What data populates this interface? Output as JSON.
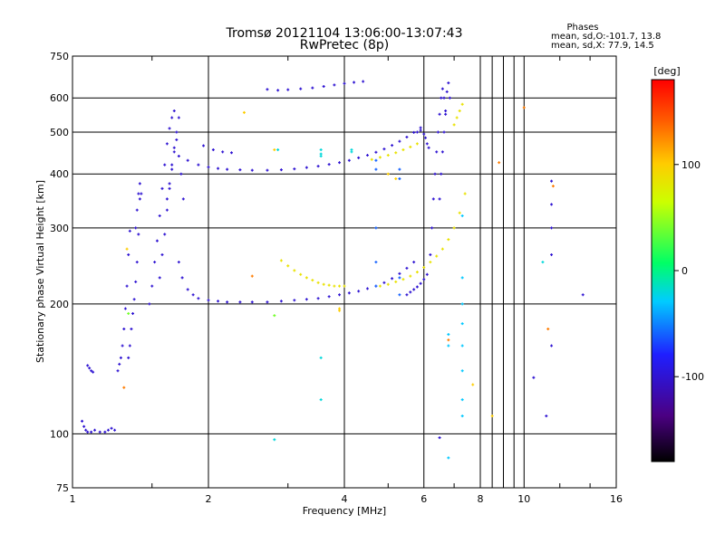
{
  "chart_data": {
    "type": "scatter",
    "title": "Tromsø 20121104 13:06:00-13:07:43",
    "subtitle": "RwPretec (8p)",
    "xlabel": "Frequency [MHz]",
    "ylabel": "Stationary phase Virtual Height [km]",
    "x_scale": "log",
    "y_scale": "log",
    "xlim": [
      1,
      16
    ],
    "ylim": [
      75,
      750
    ],
    "x_ticks": [
      1,
      2,
      4,
      6,
      8,
      10,
      16
    ],
    "y_ticks": [
      75,
      100,
      200,
      300,
      400,
      500,
      600,
      750
    ],
    "grid": true,
    "phases": {
      "header": "Phases",
      "line_o": "mean, sd,O:-101.7, 13.8",
      "line_x": "mean, sd,X:  77.9, 14.5"
    },
    "colorbar": {
      "label": "[deg]",
      "range": [
        -180,
        180
      ],
      "ticks": [
        100,
        0,
        -100
      ]
    },
    "point_sets": [
      {
        "phase": -100,
        "x": [
          1.05,
          1.06,
          1.07,
          1.08,
          1.1,
          1.12,
          1.15,
          1.18,
          1.2,
          1.22,
          1.24
        ],
        "y": [
          107,
          104,
          102,
          101,
          101,
          102,
          101,
          101,
          102,
          103,
          102
        ]
      },
      {
        "phase": -100,
        "x": [
          1.08,
          1.09,
          1.1,
          1.11
        ],
        "y": [
          144,
          142,
          140,
          139
        ]
      },
      {
        "phase": -100,
        "x": [
          1.26,
          1.27,
          1.28,
          1.29,
          1.3,
          1.31,
          1.32,
          1.33,
          1.34
        ],
        "y": [
          140,
          145,
          150,
          160,
          175,
          195,
          220,
          260,
          295
        ]
      },
      {
        "phase": -100,
        "x": [
          1.33,
          1.34,
          1.35,
          1.36,
          1.37,
          1.38,
          1.39,
          1.4,
          1.41
        ],
        "y": [
          150,
          160,
          175,
          190,
          205,
          225,
          250,
          290,
          350
        ]
      },
      {
        "phase": -100,
        "x": [
          1.38,
          1.39,
          1.4,
          1.41,
          1.42
        ],
        "y": [
          300,
          330,
          360,
          380,
          360
        ]
      },
      {
        "phase": -100,
        "x": [
          1.48,
          1.5,
          1.52,
          1.54,
          1.56,
          1.58,
          1.6,
          1.62,
          1.64,
          1.66,
          1.68
        ],
        "y": [
          200,
          220,
          250,
          280,
          320,
          370,
          420,
          470,
          510,
          540,
          560
        ]
      },
      {
        "phase": -100,
        "x": [
          1.56,
          1.58,
          1.6,
          1.62,
          1.64,
          1.66,
          1.68,
          1.7,
          1.72
        ],
        "y": [
          230,
          260,
          290,
          330,
          370,
          410,
          450,
          500,
          540
        ]
      },
      {
        "phase": -100,
        "x": [
          1.62,
          1.64,
          1.66,
          1.68,
          1.7,
          1.72,
          1.74,
          1.76
        ],
        "y": [
          350,
          380,
          420,
          460,
          480,
          440,
          400,
          350
        ]
      },
      {
        "phase": -100,
        "x": [
          1.72,
          1.75,
          1.8,
          1.85,
          1.9,
          2.0,
          2.1,
          2.2,
          2.35,
          2.5,
          2.7,
          2.9,
          3.1,
          3.3,
          3.5,
          3.7,
          3.9,
          4.1,
          4.3,
          4.5,
          4.7,
          4.9,
          5.1,
          5.3,
          5.5,
          5.7
        ],
        "y": [
          250,
          230,
          216,
          210,
          206,
          204,
          203,
          202,
          202,
          202,
          202,
          203,
          204,
          205,
          206,
          208,
          210,
          212,
          214,
          217,
          220,
          224,
          229,
          235,
          242,
          250
        ]
      },
      {
        "phase": -100,
        "x": [
          1.8,
          1.9,
          2.0,
          2.1,
          2.2,
          2.35,
          2.5,
          2.7,
          2.9,
          3.1,
          3.3,
          3.5,
          3.7,
          3.9,
          4.1,
          4.3,
          4.5,
          4.7,
          4.9,
          5.1,
          5.3,
          5.5,
          5.7,
          5.9
        ],
        "y": [
          430,
          420,
          415,
          412,
          410,
          409,
          408,
          408,
          409,
          411,
          414,
          417,
          421,
          425,
          430,
          436,
          442,
          449,
          457,
          466,
          476,
          487,
          499,
          512
        ]
      },
      {
        "phase": -100,
        "x": [
          1.95,
          2.05,
          2.15,
          2.25
        ],
        "y": [
          465,
          455,
          450,
          448
        ]
      },
      {
        "phase": -100,
        "x": [
          2.7,
          2.85,
          3.0,
          3.2,
          3.4,
          3.6,
          3.8,
          4.0,
          4.2,
          4.4
        ],
        "y": [
          628,
          625,
          627,
          630,
          633,
          638,
          643,
          648,
          652,
          655
        ]
      },
      {
        "phase": -100,
        "x": [
          6.2,
          6.25,
          6.3,
          6.35,
          6.4,
          6.45,
          6.5,
          6.55,
          6.6,
          6.65,
          6.7
        ],
        "y": [
          260,
          300,
          350,
          400,
          450,
          500,
          550,
          600,
          630,
          600,
          550
        ]
      },
      {
        "phase": -100,
        "x": [
          6.5,
          6.55,
          6.6,
          6.65,
          6.7,
          6.75,
          6.8,
          6.85
        ],
        "y": [
          350,
          400,
          450,
          500,
          560,
          620,
          650,
          600
        ]
      },
      {
        "phase": -100,
        "x": [
          5.5,
          5.6,
          5.7,
          5.8,
          5.9,
          6.0,
          6.1
        ],
        "y": [
          210,
          213,
          216,
          219,
          223,
          228,
          234
        ]
      },
      {
        "phase": -100,
        "x": [
          5.8,
          5.9,
          6.0,
          6.05,
          6.1,
          6.15
        ],
        "y": [
          500,
          505,
          495,
          485,
          470,
          460
        ]
      },
      {
        "phase": 85,
        "x": [
          2.9,
          3.0,
          3.1,
          3.2,
          3.3,
          3.4,
          3.5,
          3.6,
          3.7,
          3.8,
          3.9,
          4.0
        ],
        "y": [
          252,
          245,
          239,
          234,
          230,
          227,
          224,
          222,
          221,
          220,
          220,
          220
        ]
      },
      {
        "phase": 85,
        "x": [
          4.8,
          5.0,
          5.2,
          5.4,
          5.6,
          5.8,
          6.0,
          6.2,
          6.4,
          6.6,
          6.8,
          7.0,
          7.2,
          7.4
        ],
        "y": [
          220,
          222,
          225,
          228,
          232,
          237,
          243,
          250,
          258,
          268,
          282,
          300,
          325,
          360
        ]
      },
      {
        "phase": 85,
        "x": [
          4.6,
          4.8,
          5.0,
          5.2,
          5.4,
          5.6,
          5.8
        ],
        "y": [
          432,
          437,
          442,
          448,
          455,
          462,
          470
        ]
      },
      {
        "phase": 85,
        "x": [
          7.0,
          7.1,
          7.2,
          7.3
        ],
        "y": [
          520,
          540,
          560,
          580
        ]
      },
      {
        "phase": -60,
        "x": [
          4.7,
          4.7,
          4.7,
          4.7,
          4.7
        ],
        "y": [
          430,
          410,
          300,
          250,
          220
        ]
      },
      {
        "phase": -60,
        "x": [
          5.3,
          5.3,
          5.3,
          5.3
        ],
        "y": [
          410,
          390,
          230,
          210
        ]
      },
      {
        "phase": -30,
        "x": [
          7.3,
          7.3,
          7.3,
          7.3,
          7.3,
          7.3,
          7.3,
          7.3
        ],
        "y": [
          320,
          230,
          200,
          180,
          160,
          140,
          120,
          110
        ]
      },
      {
        "phase": -30,
        "x": [
          6.8,
          6.8,
          6.8
        ],
        "y": [
          170,
          160,
          88
        ]
      },
      {
        "phase": -100,
        "x": [
          11.5,
          11.5,
          11.5,
          11.5,
          11.5,
          11.2
        ],
        "y": [
          385,
          340,
          300,
          260,
          160,
          110
        ]
      },
      {
        "phase": -100,
        "x": [
          10.5,
          13.5,
          6.5
        ],
        "y": [
          135,
          210,
          98
        ]
      },
      {
        "phase": -20,
        "x": [
          2.8,
          11.0
        ],
        "y": [
          97,
          250
        ]
      },
      {
        "phase": 40,
        "x": [
          1.33,
          2.8
        ],
        "y": [
          190,
          188
        ]
      },
      {
        "phase": 130,
        "x": [
          1.3,
          2.5,
          6.8,
          8.8,
          11.3,
          11.6,
          10.0
        ],
        "y": [
          128,
          232,
          165,
          425,
          175,
          375,
          570
        ]
      },
      {
        "phase": 100,
        "x": [
          1.32,
          2.4,
          2.8,
          3.9,
          3.9,
          7.7,
          8.5,
          5.0,
          5.2
        ],
        "y": [
          268,
          555,
          455,
          193,
          195,
          130,
          110,
          400,
          390
        ]
      },
      {
        "phase": -20,
        "x": [
          3.55,
          3.55,
          3.55,
          3.55,
          3.55,
          2.85,
          4.15,
          4.15
        ],
        "y": [
          455,
          445,
          440,
          150,
          120,
          455,
          450,
          455
        ]
      }
    ]
  }
}
